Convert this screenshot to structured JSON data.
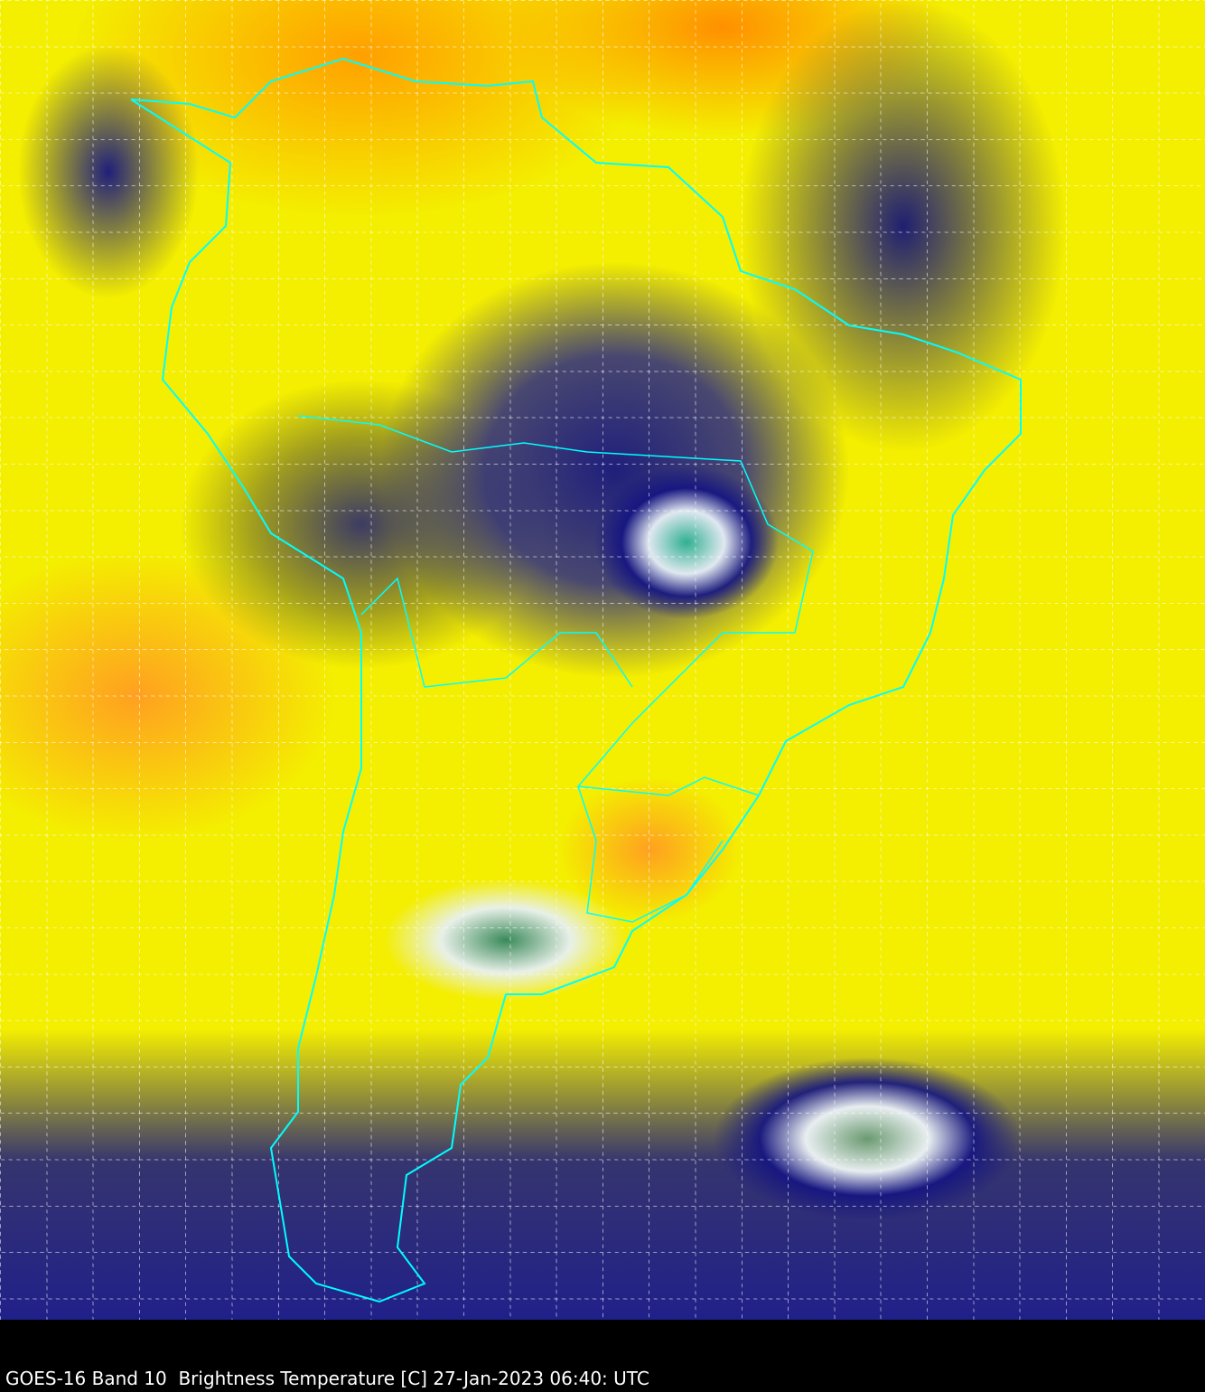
{
  "caption": "GOES-16 Band 10  Brightness Temperature [C] 27-Jan-2023 06:40: UTC",
  "colors": {
    "outline": "#00ffff",
    "warm": "#f4ee00",
    "hot": "#ffa000",
    "cold": "#20208a",
    "coldest": "#30b090",
    "background": "#000000"
  }
}
